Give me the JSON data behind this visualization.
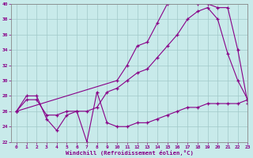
{
  "title": "",
  "xlabel": "Windchill (Refroidissement éolien,°C)",
  "ylabel": "",
  "bg_color": "#c8eaea",
  "line_color": "#880088",
  "grid_color": "#a0c8c8",
  "xlim": [
    -0.5,
    23
  ],
  "ylim": [
    22,
    40
  ],
  "yticks": [
    22,
    24,
    26,
    28,
    30,
    32,
    34,
    36,
    38,
    40
  ],
  "xticks": [
    0,
    1,
    2,
    3,
    4,
    5,
    6,
    7,
    8,
    9,
    10,
    11,
    12,
    13,
    14,
    15,
    16,
    17,
    18,
    19,
    20,
    21,
    22,
    23
  ],
  "line1_x": [
    0,
    1,
    2,
    3,
    4,
    5,
    6,
    7,
    8,
    9,
    10,
    11,
    12,
    13,
    14,
    15,
    16,
    17,
    18,
    19,
    20,
    21,
    22,
    23
  ],
  "line1_y": [
    26.0,
    28.0,
    28.0,
    25.0,
    23.5,
    25.5,
    26.0,
    22.0,
    28.5,
    24.5,
    24.0,
    24.0,
    24.5,
    24.5,
    25.0,
    25.5,
    26.0,
    26.5,
    26.5,
    27.0,
    27.0,
    27.0,
    27.0,
    27.5
  ],
  "line2_x": [
    0,
    1,
    2,
    3,
    4,
    5,
    6,
    7,
    8,
    9,
    10,
    11,
    12,
    13,
    14,
    15,
    16,
    17,
    18,
    19,
    20,
    21,
    22,
    23
  ],
  "line2_y": [
    26.0,
    27.5,
    27.5,
    25.5,
    25.5,
    26.0,
    26.0,
    26.0,
    26.5,
    28.5,
    29.0,
    30.0,
    31.0,
    31.5,
    33.0,
    34.5,
    36.0,
    38.0,
    39.0,
    39.5,
    38.0,
    33.5,
    30.0,
    27.5
  ],
  "line3_x": [
    0,
    10,
    11,
    12,
    13,
    14,
    15,
    16,
    17,
    18,
    19,
    20,
    21,
    22,
    23
  ],
  "line3_y": [
    26.0,
    30.0,
    32.0,
    34.5,
    35.0,
    37.5,
    40.0,
    40.5,
    40.5,
    40.0,
    40.0,
    39.5,
    39.5,
    34.0,
    27.0
  ]
}
